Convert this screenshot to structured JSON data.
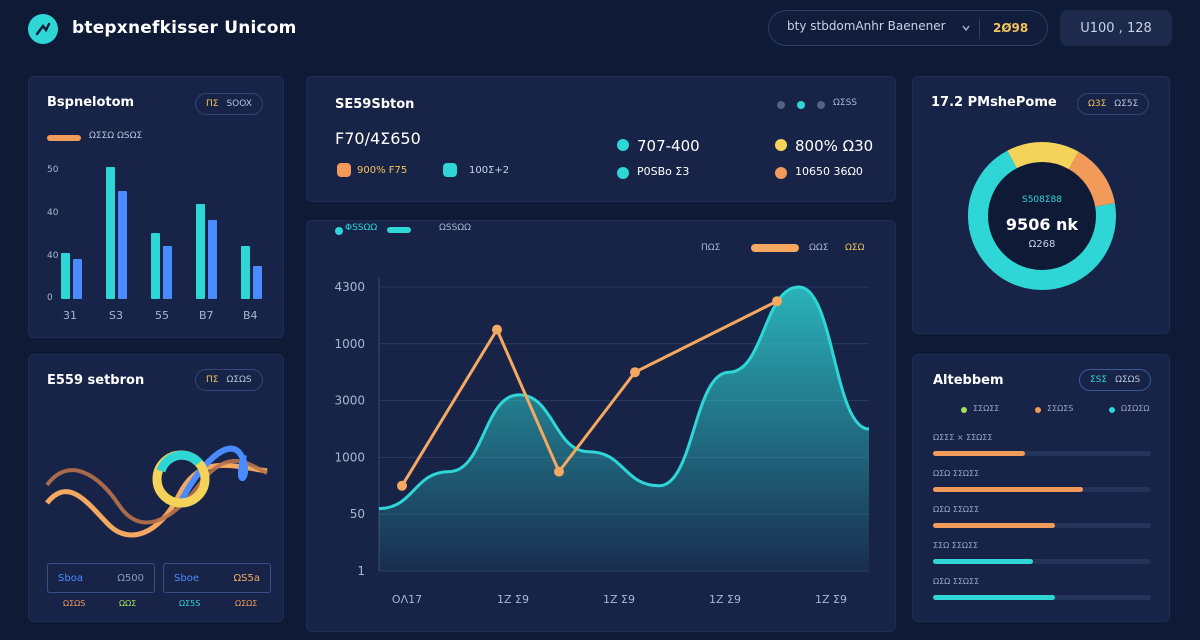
{
  "app": {
    "title": "btepxnefkisser Unicom",
    "search_placeholder": "bty stbdomAnhr Baenener",
    "search_badge": "2Ø98",
    "account_label": "U100 , 128"
  },
  "bar_card": {
    "title": "Bspnelotom",
    "pill": [
      "ΠΣ",
      "SOOX"
    ],
    "y_labels": [
      "50",
      "40",
      "40",
      "0"
    ],
    "x_labels": [
      "31",
      "S3",
      "55",
      "B7",
      "B4"
    ],
    "bars": [
      {
        "teal": 0.35,
        "blue": 0.3
      },
      {
        "teal": 1.0,
        "blue": 0.82
      },
      {
        "teal": 0.5,
        "blue": 0.4
      },
      {
        "teal": 0.72,
        "blue": 0.6
      },
      {
        "teal": 0.4,
        "blue": 0.25
      }
    ],
    "colors": {
      "teal": "#2fd6d6",
      "blue": "#4a8cff",
      "orange": "#f29a5a"
    }
  },
  "kpi_card": {
    "title": "SE59Sbton",
    "dots_label": "ΩΣSS",
    "main_value": "F70/4Σ650",
    "sub_a": "900% F75",
    "sub_b": "100Σ+2",
    "right_rows": [
      {
        "color": "#2fd6d6",
        "text": "707-400"
      },
      {
        "color": "#f4d35a",
        "text": "800% Ω30"
      },
      {
        "color": "#2fd6d6",
        "text": "Ρ0SBo Σ3"
      },
      {
        "color": "#f29a5a",
        "text": "10650 36Ω0"
      }
    ]
  },
  "main_chart": {
    "legend": [
      "ΦSSΩΩ",
      "ΩSSΩΩ"
    ],
    "top_legend": [
      "ΠΩΣ",
      "ΩΩΣ",
      "ΩΣΩ"
    ],
    "y_labels": [
      "4300",
      "1000",
      "3000",
      "1000",
      "50",
      "1"
    ],
    "x_labels": [
      "OΛ17",
      "1Z Σ9",
      "1Z Σ9",
      "1Z Σ9",
      "1Z Σ9"
    ],
    "area_points": [
      0.22,
      0.35,
      0.62,
      0.42,
      0.3,
      0.7,
      1.0,
      0.5
    ],
    "line_points": [
      0.3,
      0.85,
      0.35,
      0.7,
      0.95
    ],
    "colors": {
      "area": "#2fd6d6",
      "line": "#f4a860"
    }
  },
  "donut_card": {
    "title": "17.2 PMshePome",
    "pill": [
      "Ω3Σ",
      "ΩΣ5Σ"
    ],
    "center_label": "S508Σ88",
    "center_value": "9506 nk",
    "center_sub": "Ω268",
    "segments": [
      {
        "label": "teal",
        "value": 70,
        "color": "#2fd6d6"
      },
      {
        "label": "yellow",
        "value": 16,
        "color": "#f4d35a"
      },
      {
        "label": "orange",
        "value": 14,
        "color": "#f29a5a"
      }
    ]
  },
  "wave_card": {
    "title": "E559 setbron",
    "pill": [
      "ΠΣ",
      "ΩΣΩS"
    ],
    "btn_a": {
      "left": "Sboa",
      "right": "Ω500"
    },
    "btn_b": {
      "left": "Sboe",
      "right": "ΩS5a"
    },
    "subs": [
      "ΩΣΩS",
      "ΩΩΣ",
      "ΩΣ5S",
      "ΩΣΩΣ"
    ]
  },
  "progress_card": {
    "title": "Altebbem",
    "pill": [
      "ΣSΣ",
      "ΩΣΩS"
    ],
    "legend": [
      {
        "color": "#a6e05a",
        "text": "ΣΣΩΣΣ"
      },
      {
        "color": "#f29a5a",
        "text": "ΣΣΩΣS"
      },
      {
        "color": "#2fd6d6",
        "text": "ΩΣΩΣΩ"
      }
    ],
    "rows": [
      {
        "label": "ΩΣΣΣ × ΣΣΩΣΣ",
        "value": 0.42,
        "color": "#f29a5a"
      },
      {
        "label": "ΩΣΩ ΣΣΩΣΣ",
        "value": 0.69,
        "color": "#f29a5a"
      },
      {
        "label": "ΩΣΩ ΣΣΩΣΣ",
        "value": 0.56,
        "color": "#f29a5a"
      },
      {
        "label": "ΣΣΩ ΣΣΩΣΣ",
        "value": 0.46,
        "color": "#2fd6d6"
      },
      {
        "label": "ΩΣΩ ΣΣΩΣΣ",
        "value": 0.56,
        "color": "#2fd6d6"
      }
    ]
  }
}
